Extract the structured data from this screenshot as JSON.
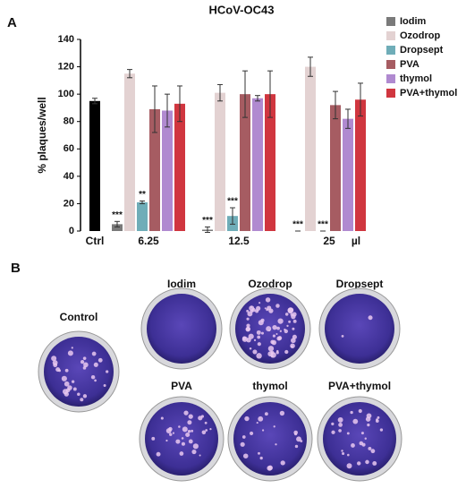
{
  "panel_a_label": "A",
  "chart_data": {
    "type": "bar",
    "title": "HCoV-OC43",
    "y_label": "% plaques/well",
    "categories": [
      "Ctrl",
      "6.25",
      "12.5",
      "25"
    ],
    "x_unit_label": "µl",
    "ylim": [
      0,
      140
    ],
    "yticks": [
      0,
      20,
      40,
      60,
      80,
      100,
      120,
      140
    ],
    "control": {
      "color": "#000000",
      "value": 95,
      "error": 2
    },
    "series": [
      {
        "name": "Iodim",
        "color": "#7a7a7a",
        "values": [
          null,
          5,
          1,
          0
        ],
        "errors": [
          null,
          2,
          2,
          0
        ],
        "significance": [
          null,
          "***",
          "***",
          "***"
        ]
      },
      {
        "name": "Ozodrop",
        "color": "#e3d2d2",
        "values": [
          null,
          115,
          101,
          120
        ],
        "errors": [
          null,
          3,
          6,
          7
        ],
        "significance": [
          null,
          null,
          null,
          null
        ]
      },
      {
        "name": "Dropsept",
        "color": "#6fadb8",
        "values": [
          null,
          21,
          11,
          0
        ],
        "errors": [
          null,
          1,
          6,
          0
        ],
        "significance": [
          null,
          "**",
          "***",
          "***"
        ]
      },
      {
        "name": "PVA",
        "color": "#a65c62",
        "values": [
          null,
          89,
          100,
          92
        ],
        "errors": [
          null,
          17,
          17,
          10
        ],
        "significance": [
          null,
          null,
          null,
          null
        ]
      },
      {
        "name": "thymol",
        "color": "#b08ad0",
        "values": [
          null,
          88,
          97,
          82
        ],
        "errors": [
          null,
          12,
          2,
          7
        ],
        "significance": [
          null,
          null,
          null,
          null
        ]
      },
      {
        "name": "PVA+thymol",
        "color": "#d0363f",
        "values": [
          null,
          93,
          100,
          96
        ],
        "errors": [
          null,
          13,
          17,
          12
        ],
        "significance": [
          null,
          null,
          null,
          null
        ]
      }
    ]
  },
  "panel_b": {
    "label": "B",
    "plates": [
      "Control",
      "Iodim",
      "Ozodrop",
      "Dropsept",
      "PVA",
      "thymol",
      "PVA+thymol"
    ]
  }
}
